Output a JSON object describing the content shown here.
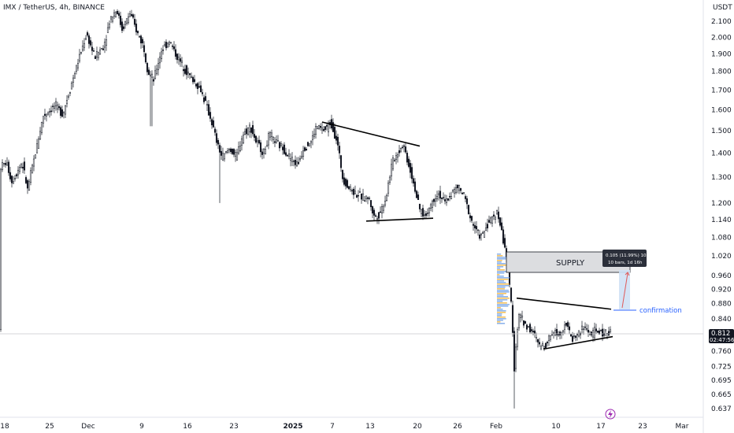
{
  "header": {
    "symbol_line": "IMX / TetherUS, 4h, BINANCE",
    "currency": "USDT"
  },
  "price_badge": {
    "price": "0.812",
    "countdown": "02:47:56"
  },
  "annotations": {
    "supply_label": "SUPPLY",
    "measure_line1": "0.105 (11.99%) 105",
    "measure_line2": "10 bars, 1d 16h",
    "confirmation_label": "confirmation"
  },
  "colors": {
    "supply_fill": "#d9dadc",
    "measure_fill": "#cfe1f5",
    "arrow": "#c0392b",
    "confirm_line": "#2962ff"
  },
  "chart_data": {
    "type": "candlestick",
    "symbol": "IMX / TetherUS",
    "interval": "4h",
    "exchange": "BINANCE",
    "y_scale": "log",
    "ylim": [
      0.62,
      2.2
    ],
    "y_ticks": [
      "2.100",
      "2.000",
      "1.900",
      "1.800",
      "1.700",
      "1.600",
      "1.500",
      "1.400",
      "1.300",
      "1.200",
      "1.140",
      "1.080",
      "1.020",
      "0.960",
      "0.920",
      "0.880",
      "0.840",
      "0.800",
      "0.760",
      "0.725",
      "0.695",
      "0.665",
      "0.637"
    ],
    "x_ticks": [
      "18",
      "25",
      "Dec",
      "9",
      "16",
      "23",
      "2025",
      "7",
      "13",
      "20",
      "26",
      "Feb",
      "10",
      "17",
      "23",
      "Mar"
    ],
    "price_path": [
      [
        0,
        1.34
      ],
      [
        8,
        1.36
      ],
      [
        15,
        1.28
      ],
      [
        28,
        1.36
      ],
      [
        35,
        1.25
      ],
      [
        45,
        1.4
      ],
      [
        55,
        1.57
      ],
      [
        70,
        1.62
      ],
      [
        80,
        1.58
      ],
      [
        92,
        1.75
      ],
      [
        102,
        1.9
      ],
      [
        110,
        2.02
      ],
      [
        120,
        1.88
      ],
      [
        132,
        1.95
      ],
      [
        140,
        2.12
      ],
      [
        148,
        2.18
      ],
      [
        155,
        2.05
      ],
      [
        165,
        2.15
      ],
      [
        175,
        2.02
      ],
      [
        182,
        1.95
      ],
      [
        188,
        1.8
      ],
      [
        195,
        1.75
      ],
      [
        205,
        1.92
      ],
      [
        215,
        1.98
      ],
      [
        225,
        1.88
      ],
      [
        240,
        1.78
      ],
      [
        255,
        1.7
      ],
      [
        262,
        1.62
      ],
      [
        268,
        1.55
      ],
      [
        275,
        1.45
      ],
      [
        282,
        1.38
      ],
      [
        292,
        1.42
      ],
      [
        300,
        1.38
      ],
      [
        308,
        1.48
      ],
      [
        318,
        1.52
      ],
      [
        325,
        1.45
      ],
      [
        335,
        1.4
      ],
      [
        342,
        1.48
      ],
      [
        352,
        1.44
      ],
      [
        360,
        1.42
      ],
      [
        368,
        1.38
      ],
      [
        378,
        1.35
      ],
      [
        385,
        1.42
      ],
      [
        395,
        1.45
      ],
      [
        402,
        1.52
      ],
      [
        412,
        1.5
      ],
      [
        420,
        1.54
      ],
      [
        428,
        1.45
      ],
      [
        435,
        1.3
      ],
      [
        442,
        1.26
      ],
      [
        450,
        1.24
      ],
      [
        460,
        1.22
      ],
      [
        468,
        1.22
      ],
      [
        475,
        1.15
      ],
      [
        482,
        1.16
      ],
      [
        490,
        1.22
      ],
      [
        498,
        1.36
      ],
      [
        505,
        1.4
      ],
      [
        512,
        1.44
      ],
      [
        518,
        1.36
      ],
      [
        525,
        1.28
      ],
      [
        532,
        1.18
      ],
      [
        540,
        1.15
      ],
      [
        548,
        1.2
      ],
      [
        556,
        1.24
      ],
      [
        565,
        1.2
      ],
      [
        574,
        1.24
      ],
      [
        582,
        1.26
      ],
      [
        590,
        1.22
      ],
      [
        598,
        1.14
      ],
      [
        605,
        1.1
      ],
      [
        612,
        1.08
      ],
      [
        618,
        1.12
      ],
      [
        624,
        1.14
      ],
      [
        630,
        1.17
      ],
      [
        634,
        1.14
      ],
      [
        638,
        1.08
      ],
      [
        642,
        1.04
      ],
      [
        646,
        0.95
      ],
      [
        650,
        0.86
      ],
      [
        653,
        0.72
      ],
      [
        656,
        0.8
      ],
      [
        660,
        0.86
      ],
      [
        664,
        0.83
      ],
      [
        670,
        0.82
      ],
      [
        678,
        0.8
      ],
      [
        686,
        0.77
      ],
      [
        694,
        0.78
      ],
      [
        702,
        0.81
      ],
      [
        710,
        0.8
      ],
      [
        718,
        0.83
      ],
      [
        726,
        0.79
      ],
      [
        734,
        0.8
      ],
      [
        742,
        0.82
      ],
      [
        750,
        0.8
      ],
      [
        758,
        0.81
      ],
      [
        766,
        0.8
      ],
      [
        774,
        0.812
      ]
    ],
    "trendlines": [
      {
        "name": "upper wedge",
        "points": [
          [
            409,
            1.54
          ],
          [
            533,
            1.43
          ]
        ]
      },
      {
        "name": "lower wedge",
        "points": [
          [
            465,
            1.135
          ],
          [
            550,
            1.145
          ]
        ]
      },
      {
        "name": "pennant top",
        "points": [
          [
            656,
            0.895
          ],
          [
            776,
            0.865
          ]
        ]
      },
      {
        "name": "pennant bottom",
        "points": [
          [
            690,
            0.765
          ],
          [
            778,
            0.795
          ]
        ]
      }
    ],
    "supply_zone": {
      "label": "SUPPLY",
      "top": 1.04,
      "bottom": 0.965
    },
    "measure": {
      "text": "0.105 (11.99%) 105",
      "bars": "10 bars, 1d 16h",
      "from": 0.875,
      "to": 0.98
    },
    "confirmation_level": 0.873,
    "last_price": 0.812
  }
}
